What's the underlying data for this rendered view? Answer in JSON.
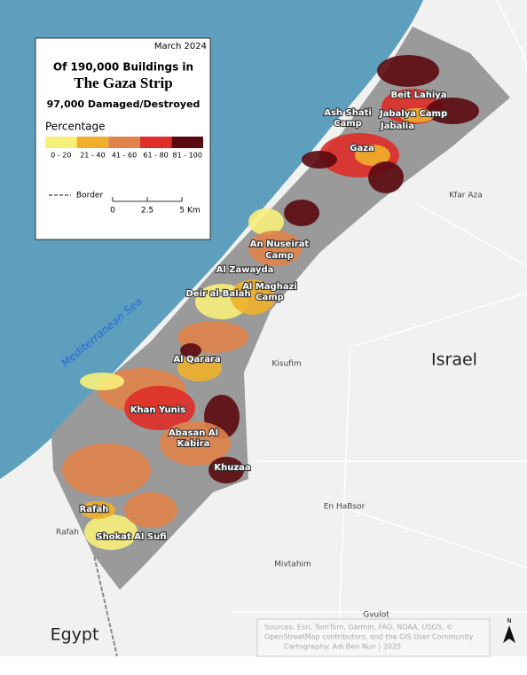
{
  "date": "March 2024",
  "title": {
    "line1": "Of 190,000 Buildings in",
    "line2": "The Gaza Strip",
    "line3": "97,000 Damaged/Destroyed"
  },
  "legend": {
    "title": "Percentage",
    "classes": [
      {
        "label": "0 - 20",
        "color": "#f6ef7a"
      },
      {
        "label": "21 - 40",
        "color": "#eeb02a"
      },
      {
        "label": "41 - 60",
        "color": "#e0834a"
      },
      {
        "label": "61 - 80",
        "color": "#df2e28"
      },
      {
        "label": "81 - 100",
        "color": "#5a0a10"
      }
    ]
  },
  "border_label": "Border",
  "scale_ticks": [
    "0",
    "2.5",
    "5 Km"
  ],
  "places": [
    [
      "Beit Lahiya"
    ],
    [
      "Ash Shati",
      "Camp"
    ],
    [
      "Jabalya Camp"
    ],
    [
      "Jabalia"
    ],
    [
      "Gaza"
    ],
    [
      "Kfar Aza"
    ],
    [
      "An Nuseirat",
      "Camp"
    ],
    [
      "Al Zawayda"
    ],
    [
      "Al Maghazi",
      "Camp"
    ],
    [
      "Deir al-Balah"
    ],
    [
      "Mediterranean Sea"
    ],
    [
      "Al Qarara"
    ],
    [
      "Kisufim"
    ],
    [
      "Israel"
    ],
    [
      "Khan Yunis"
    ],
    [
      "Abasan Al",
      "Kabira"
    ],
    [
      "Khuzaa"
    ],
    [
      "En HaBsor"
    ],
    [
      "Rafah"
    ],
    [
      "Rafah"
    ],
    [
      "Shokat Al Sufi"
    ],
    [
      "Mivtahim"
    ],
    [
      "Gvulot"
    ],
    [
      "Egypt"
    ]
  ],
  "sources": [
    "Sources: Esri, TomTom, Garmin, FAO, NOAA, USGS, ©",
    "OpenStreetMap contributors, and the GIS User Community",
    "Cartography: Adi Ben Nun | 2025"
  ],
  "north": "N"
}
